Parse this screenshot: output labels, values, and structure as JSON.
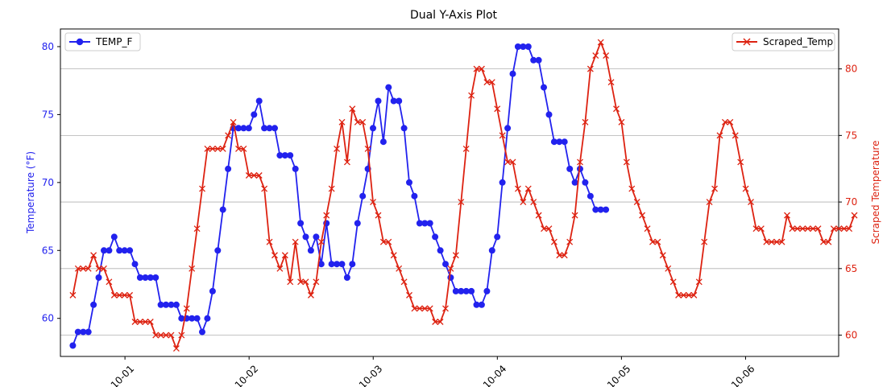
{
  "chart_data": {
    "type": "line",
    "title": "Dual Y-Axis Plot",
    "xlabel": "",
    "x_tick_labels": [
      "10-01",
      "10-02",
      "10-03",
      "10-04",
      "10-05",
      "10-06"
    ],
    "xlim_days": [
      -0.52,
      5.75
    ],
    "left_axis": {
      "label": "Temperature (°F)",
      "ylim": [
        57.2,
        81.3
      ],
      "ticks": [
        60,
        65,
        70,
        75,
        80
      ],
      "color": "#2222ee"
    },
    "right_axis": {
      "label": "Scraped Temperature",
      "ylim": [
        58.4,
        83.0
      ],
      "ticks": [
        60,
        65,
        70,
        75,
        80
      ],
      "color": "#dd2211",
      "grid": true
    },
    "series": [
      {
        "name": "TEMP_F",
        "axis": "left",
        "color": "#2222ee",
        "marker": "circle",
        "x_start": -0.42,
        "x_step": 0.0417,
        "values": [
          58,
          59,
          59,
          59,
          61,
          63,
          65,
          65,
          66,
          65,
          65,
          65,
          64,
          63,
          63,
          63,
          63,
          61,
          61,
          61,
          61,
          60,
          60,
          60,
          60,
          59,
          60,
          62,
          65,
          68,
          71,
          74,
          74,
          74,
          74,
          75,
          76,
          74,
          74,
          74,
          72,
          72,
          72,
          71,
          67,
          66,
          65,
          66,
          64,
          67,
          64,
          64,
          64,
          63,
          64,
          67,
          69,
          71,
          74,
          76,
          73,
          77,
          76,
          76,
          74,
          70,
          69,
          67,
          67,
          67,
          66,
          65,
          64,
          63,
          62,
          62,
          62,
          62,
          61,
          61,
          62,
          65,
          66,
          70,
          74,
          78,
          80,
          80,
          80,
          79,
          79,
          77,
          75,
          73,
          73,
          73,
          71,
          70,
          71,
          70,
          69,
          68,
          68,
          68
        ]
      },
      {
        "name": "Scraped_Temp",
        "axis": "right",
        "color": "#dd2211",
        "marker": "x",
        "x_start": -0.42,
        "x_step": 0.0417,
        "values": [
          63,
          65,
          65,
          65,
          66,
          65,
          65,
          64,
          63,
          63,
          63,
          63,
          61,
          61,
          61,
          61,
          60,
          60,
          60,
          60,
          59,
          60,
          62,
          65,
          68,
          71,
          74,
          74,
          74,
          74,
          75,
          76,
          74,
          74,
          72,
          72,
          72,
          71,
          67,
          66,
          65,
          66,
          64,
          67,
          64,
          64,
          63,
          64,
          67,
          69,
          71,
          74,
          76,
          73,
          77,
          76,
          76,
          74,
          70,
          69,
          67,
          67,
          66,
          65,
          64,
          63,
          62,
          62,
          62,
          62,
          61,
          61,
          62,
          65,
          66,
          70,
          74,
          78,
          80,
          80,
          79,
          79,
          77,
          75,
          73,
          73,
          71,
          70,
          71,
          70,
          69,
          68,
          68,
          67,
          66,
          66,
          67,
          69,
          73,
          76,
          80,
          81,
          82,
          81,
          79,
          77,
          76,
          73,
          71,
          70,
          69,
          68,
          67,
          67,
          66,
          65,
          64,
          63,
          63,
          63,
          63,
          64,
          67,
          70,
          71,
          75,
          76,
          76,
          75,
          73,
          71,
          70,
          68,
          68,
          67,
          67,
          67,
          67,
          69,
          68,
          68,
          68,
          68,
          68,
          68,
          67,
          67,
          68,
          68,
          68,
          68,
          69
        ]
      }
    ],
    "legend": [
      {
        "label": "TEMP_F",
        "position": "top-left"
      },
      {
        "label": "Scraped_Temp",
        "position": "top-right"
      }
    ]
  }
}
